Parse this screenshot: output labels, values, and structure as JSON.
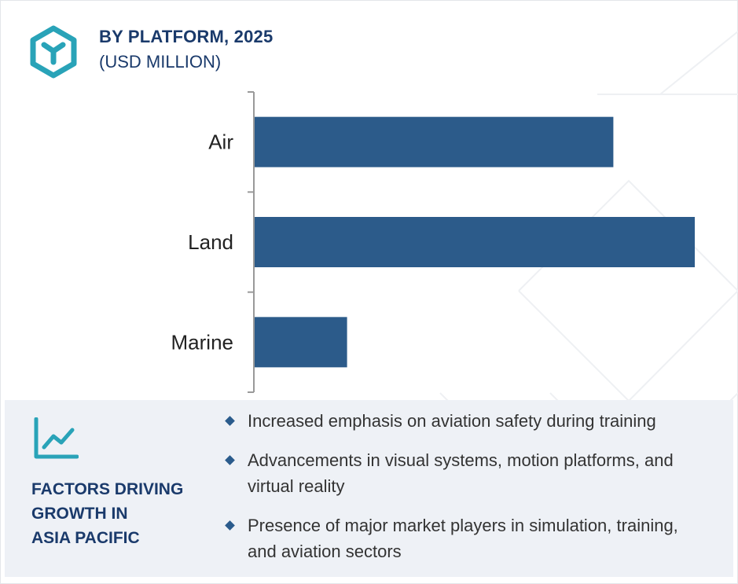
{
  "header": {
    "title": "BY PLATFORM, 2025",
    "subtitle": "(USD MILLION)",
    "logo_icon": "hexagon-y-logo-icon",
    "accent_color": "#29a3b8",
    "text_color": "#1a3a6b"
  },
  "chart_data": {
    "type": "bar",
    "orientation": "horizontal",
    "categories": [
      "Air",
      "Land",
      "Marine"
    ],
    "values": [
      81.5,
      100,
      21
    ],
    "bar_color": "#2c5b8a",
    "grid": false,
    "legend": "none"
  },
  "factors_panel": {
    "icon": "line-chart-icon",
    "heading_lines": [
      "FACTORS DRIVING",
      "GROWTH IN",
      "ASIA PACIFIC"
    ],
    "items": [
      {
        "lines": [
          "Increased emphasis on aviation safety during training"
        ]
      },
      {
        "lines": [
          "Advancements in visual systems, motion platforms, and",
          "virtual reality"
        ]
      },
      {
        "lines": [
          "Presence of major market players in simulation, training,",
          "and aviation sectors"
        ]
      }
    ],
    "background": "#eef1f6"
  }
}
